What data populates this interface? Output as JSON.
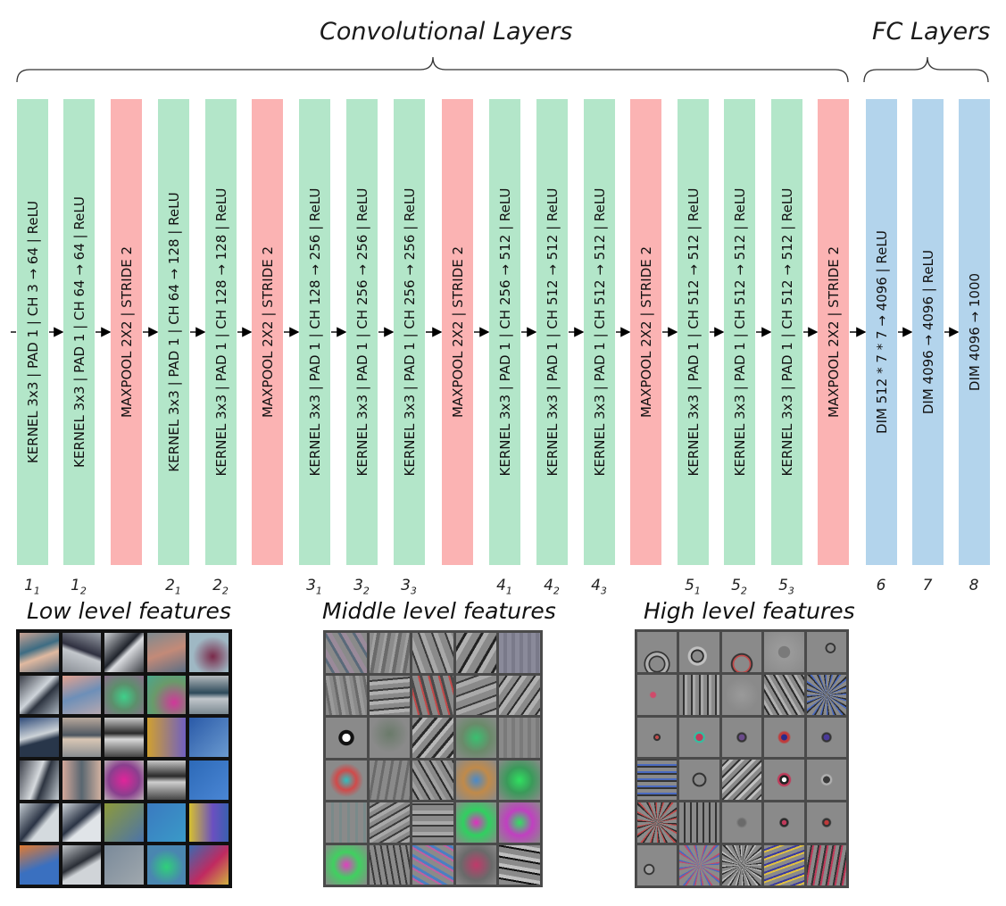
{
  "titles": {
    "conv": "Convolutional Layers",
    "fc": "FC Layers"
  },
  "layers": [
    {
      "type": "conv",
      "text": "KERNEL 3x3 | PAD 1 | CH  3 → 64 | ReLU",
      "idx": "1",
      "sub": "1"
    },
    {
      "type": "conv",
      "text": "KERNEL 3x3 | PAD 1 | CH  64 → 64 | ReLU",
      "idx": "1",
      "sub": "2"
    },
    {
      "type": "pool",
      "text": "MAXPOOL 2X2 | STRIDE 2",
      "idx": "",
      "sub": ""
    },
    {
      "type": "conv",
      "text": "KERNEL 3x3 | PAD 1 | CH  64 → 128 | ReLU",
      "idx": "2",
      "sub": "1"
    },
    {
      "type": "conv",
      "text": "KERNEL 3x3 | PAD 1 | CH  128 → 128 | ReLU",
      "idx": "2",
      "sub": "2"
    },
    {
      "type": "pool",
      "text": "MAXPOOL 2X2 | STRIDE 2",
      "idx": "",
      "sub": ""
    },
    {
      "type": "conv",
      "text": "KERNEL 3x3 | PAD 1 | CH  128 → 256 | ReLU",
      "idx": "3",
      "sub": "1"
    },
    {
      "type": "conv",
      "text": "KERNEL 3x3 | PAD 1 | CH  256 → 256 | ReLU",
      "idx": "3",
      "sub": "2"
    },
    {
      "type": "conv",
      "text": "KERNEL 3x3 | PAD 1 | CH  256 → 256 | ReLU",
      "idx": "3",
      "sub": "3"
    },
    {
      "type": "pool",
      "text": "MAXPOOL 2X2 | STRIDE 2",
      "idx": "",
      "sub": ""
    },
    {
      "type": "conv",
      "text": "KERNEL 3x3 | PAD 1 | CH  256 → 512 | ReLU",
      "idx": "4",
      "sub": "1"
    },
    {
      "type": "conv",
      "text": "KERNEL 3x3 | PAD 1 | CH  512 → 512 | ReLU",
      "idx": "4",
      "sub": "2"
    },
    {
      "type": "conv",
      "text": "KERNEL 3x3 | PAD 1 | CH  512 → 512 | ReLU",
      "idx": "4",
      "sub": "3"
    },
    {
      "type": "pool",
      "text": "MAXPOOL 2X2 | STRIDE 2",
      "idx": "",
      "sub": ""
    },
    {
      "type": "conv",
      "text": "KERNEL 3x3 | PAD 1 | CH  512 → 512 | ReLU",
      "idx": "5",
      "sub": "1"
    },
    {
      "type": "conv",
      "text": "KERNEL 3x3 | PAD 1 | CH  512 → 512 | ReLU",
      "idx": "5",
      "sub": "2"
    },
    {
      "type": "conv",
      "text": "KERNEL 3x3 | PAD 1 | CH  512 → 512 | ReLU",
      "idx": "5",
      "sub": "3"
    },
    {
      "type": "pool",
      "text": "MAXPOOL 2X2 | STRIDE 2",
      "idx": "",
      "sub": ""
    },
    {
      "type": "fc",
      "text": "DIM 512 * 7 * 7 → 4096 | ReLU",
      "idx": "6",
      "sub": ""
    },
    {
      "type": "fc",
      "text": "DIM 4096 → 4096 | ReLU",
      "idx": "7",
      "sub": ""
    },
    {
      "type": "fc",
      "text": "DIM 4096 → 1000",
      "idx": "8",
      "sub": ""
    }
  ],
  "features": {
    "low": "Low level features",
    "middle": "Middle level features",
    "high": "High level features"
  },
  "colors": {
    "conv": "#b3e6c9",
    "pool": "#fbb3b3",
    "fc": "#b3d4ec"
  }
}
